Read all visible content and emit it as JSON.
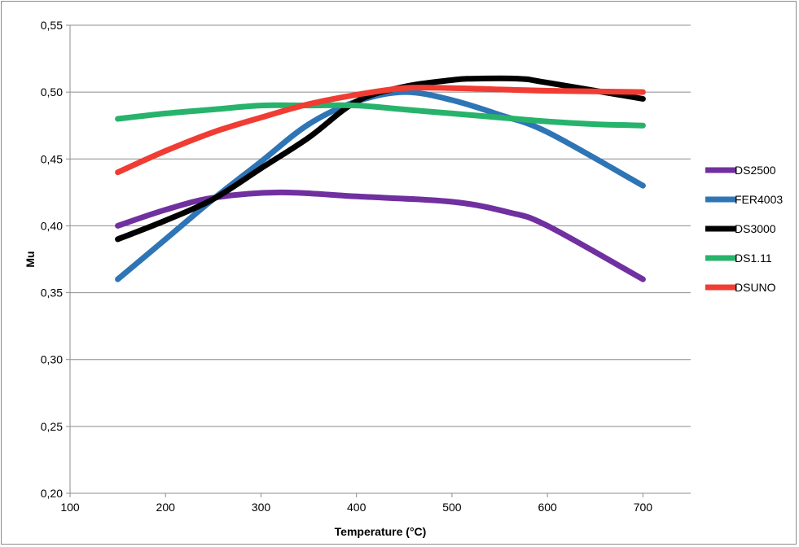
{
  "chart_data": {
    "type": "line",
    "title": "",
    "xlabel": "Temperature (°C)",
    "ylabel": "Mu",
    "xlim": [
      100,
      750
    ],
    "ylim": [
      0.2,
      0.55
    ],
    "x_ticks": [
      100,
      200,
      300,
      400,
      500,
      600,
      700
    ],
    "x_tick_labels": [
      "100",
      "200",
      "300",
      "400",
      "500",
      "600",
      "700"
    ],
    "y_ticks": [
      0.2,
      0.25,
      0.3,
      0.35,
      0.4,
      0.45,
      0.5,
      0.55
    ],
    "y_tick_labels": [
      "0,20",
      "0,25",
      "0,30",
      "0,35",
      "0,40",
      "0,45",
      "0,50",
      "0,55"
    ],
    "grid": "horizontal",
    "legend_position": "right",
    "series": [
      {
        "name": "DS2500",
        "color": "#7030a0",
        "x": [
          150,
          200,
          250,
          320,
          400,
          500,
          560,
          600,
          700
        ],
        "y": [
          0.4,
          0.412,
          0.421,
          0.425,
          0.422,
          0.418,
          0.41,
          0.4,
          0.36
        ]
      },
      {
        "name": "FER4003",
        "color": "#2e75b6",
        "x": [
          150,
          200,
          250,
          300,
          350,
          400,
          450,
          500,
          550,
          600,
          700
        ],
        "y": [
          0.36,
          0.39,
          0.42,
          0.448,
          0.476,
          0.493,
          0.5,
          0.494,
          0.483,
          0.47,
          0.43
        ]
      },
      {
        "name": "DS3000",
        "color": "#000000",
        "x": [
          150,
          200,
          250,
          300,
          350,
          400,
          450,
          500,
          520,
          570,
          600,
          700
        ],
        "y": [
          0.39,
          0.404,
          0.42,
          0.443,
          0.466,
          0.493,
          0.504,
          0.509,
          0.51,
          0.51,
          0.507,
          0.495
        ]
      },
      {
        "name": "DS1.11",
        "color": "#27b36b",
        "x": [
          150,
          200,
          250,
          300,
          350,
          400,
          450,
          500,
          550,
          600,
          650,
          700
        ],
        "y": [
          0.48,
          0.484,
          0.487,
          0.49,
          0.49,
          0.49,
          0.487,
          0.484,
          0.481,
          0.478,
          0.476,
          0.475
        ]
      },
      {
        "name": "DSUNO",
        "color": "#f03c33",
        "x": [
          150,
          200,
          250,
          300,
          350,
          400,
          450,
          500,
          550,
          600,
          700
        ],
        "y": [
          0.44,
          0.456,
          0.47,
          0.481,
          0.491,
          0.498,
          0.503,
          0.503,
          0.502,
          0.501,
          0.5
        ]
      }
    ]
  }
}
